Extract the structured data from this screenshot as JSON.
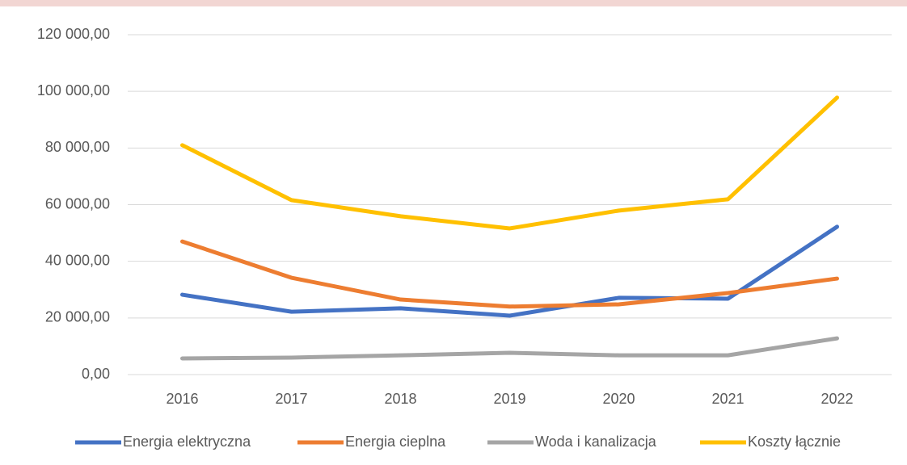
{
  "chart_data": {
    "type": "line",
    "categories": [
      "2016",
      "2017",
      "2018",
      "2019",
      "2020",
      "2021",
      "2022"
    ],
    "series": [
      {
        "name": "Energia elektryczna",
        "color": "#4472c4",
        "values": [
          28200,
          22200,
          23400,
          20800,
          27100,
          26800,
          52200
        ]
      },
      {
        "name": "Energia cieplna",
        "color": "#ed7d31",
        "values": [
          47000,
          34200,
          26500,
          24000,
          24800,
          28800,
          33900
        ]
      },
      {
        "name": "Woda i kanalizacja",
        "color": "#a5a5a5",
        "values": [
          5700,
          6000,
          6800,
          7700,
          6800,
          6800,
          12800
        ]
      },
      {
        "name": "Koszty łącznie",
        "color": "#ffc000",
        "values": [
          81000,
          61600,
          55900,
          51600,
          57900,
          61900,
          97800
        ]
      }
    ],
    "ylim": [
      0,
      120000
    ],
    "yticks": [
      {
        "value": 0,
        "label": "0,00"
      },
      {
        "value": 20000,
        "label": "20 000,00"
      },
      {
        "value": 40000,
        "label": "40 000,00"
      },
      {
        "value": 60000,
        "label": "60 000,00"
      },
      {
        "value": 80000,
        "label": "80 000,00"
      },
      {
        "value": 100000,
        "label": "100 000,00"
      },
      {
        "value": 120000,
        "label": "120 000,00"
      }
    ],
    "grid": true,
    "legend": "bottom"
  }
}
